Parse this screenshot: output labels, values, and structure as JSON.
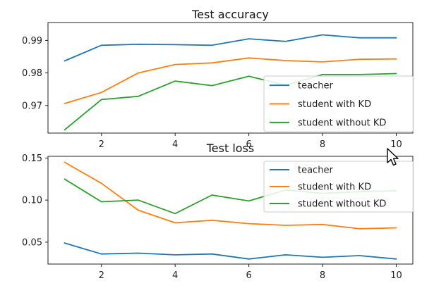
{
  "chart_data": [
    {
      "type": "line",
      "title": "Test accuracy",
      "xlabel": "",
      "ylabel": "",
      "x": [
        1,
        2,
        3,
        4,
        5,
        6,
        7,
        8,
        9,
        10
      ],
      "xticks": [
        2,
        4,
        6,
        8,
        10
      ],
      "yticks": [
        0.97,
        0.98,
        0.99
      ],
      "ylim": [
        0.9615,
        0.9955
      ],
      "xlim": [
        0.55,
        10.45
      ],
      "grid": false,
      "legend": "bottom-right",
      "series": [
        {
          "name": "teacher",
          "color": "#1f77b4",
          "values": [
            0.9837,
            0.9885,
            0.9888,
            0.9887,
            0.9885,
            0.9905,
            0.9897,
            0.9917,
            0.9908,
            0.9908
          ]
        },
        {
          "name": "student with KD",
          "color": "#ff7f0e",
          "values": [
            0.9706,
            0.974,
            0.98,
            0.9826,
            0.9831,
            0.9846,
            0.9838,
            0.9834,
            0.9842,
            0.9843
          ]
        },
        {
          "name": "student without KD",
          "color": "#2ca02c",
          "values": [
            0.9625,
            0.9718,
            0.9728,
            0.9775,
            0.9761,
            0.979,
            0.9762,
            0.9795,
            0.9795,
            0.9798
          ]
        }
      ]
    },
    {
      "type": "line",
      "title": "Test loss",
      "xlabel": "",
      "ylabel": "",
      "x": [
        1,
        2,
        3,
        4,
        5,
        6,
        7,
        8,
        9,
        10
      ],
      "xticks": [
        2,
        4,
        6,
        8,
        10
      ],
      "yticks": [
        0.05,
        0.1,
        0.15
      ],
      "ylim": [
        0.024,
        0.152
      ],
      "xlim": [
        0.55,
        10.45
      ],
      "grid": false,
      "legend": "top-right",
      "series": [
        {
          "name": "teacher",
          "color": "#1f77b4",
          "values": [
            0.049,
            0.036,
            0.037,
            0.035,
            0.036,
            0.03,
            0.035,
            0.032,
            0.034,
            0.03
          ]
        },
        {
          "name": "student with KD",
          "color": "#ff7f0e",
          "values": [
            0.145,
            0.12,
            0.088,
            0.073,
            0.076,
            0.072,
            0.07,
            0.071,
            0.066,
            0.067
          ]
        },
        {
          "name": "student without KD",
          "color": "#2ca02c",
          "values": [
            0.125,
            0.098,
            0.1,
            0.084,
            0.106,
            0.099,
            0.112,
            0.108,
            0.11,
            0.111
          ]
        }
      ]
    }
  ]
}
